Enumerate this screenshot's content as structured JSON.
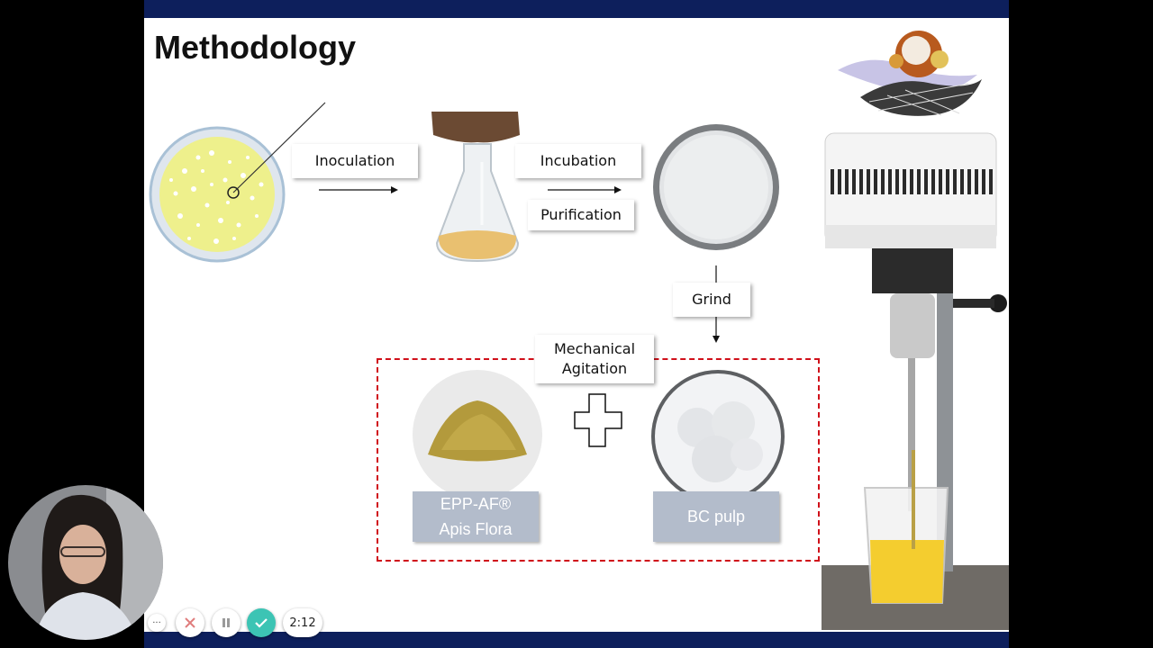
{
  "slide": {
    "title": "Methodology",
    "steps": {
      "inoculation": "Inoculation",
      "incubation": "Incubation",
      "purification": "Purification",
      "grind": "Grind",
      "mechanical_agitation_line1": "Mechanical",
      "mechanical_agitation_line2": "Agitation"
    },
    "ingredients": {
      "propolis_line1": "EPP-AF®",
      "propolis_line2": "Apis Flora",
      "bc_pulp": "BC pulp"
    }
  },
  "player": {
    "more_label": "···",
    "elapsed": "2:12"
  },
  "colors": {
    "header_bar": "#0d1f5c",
    "dashed_border": "#d0101a",
    "label_box": "#b3bccb",
    "record_button": "#3cc4b4"
  }
}
